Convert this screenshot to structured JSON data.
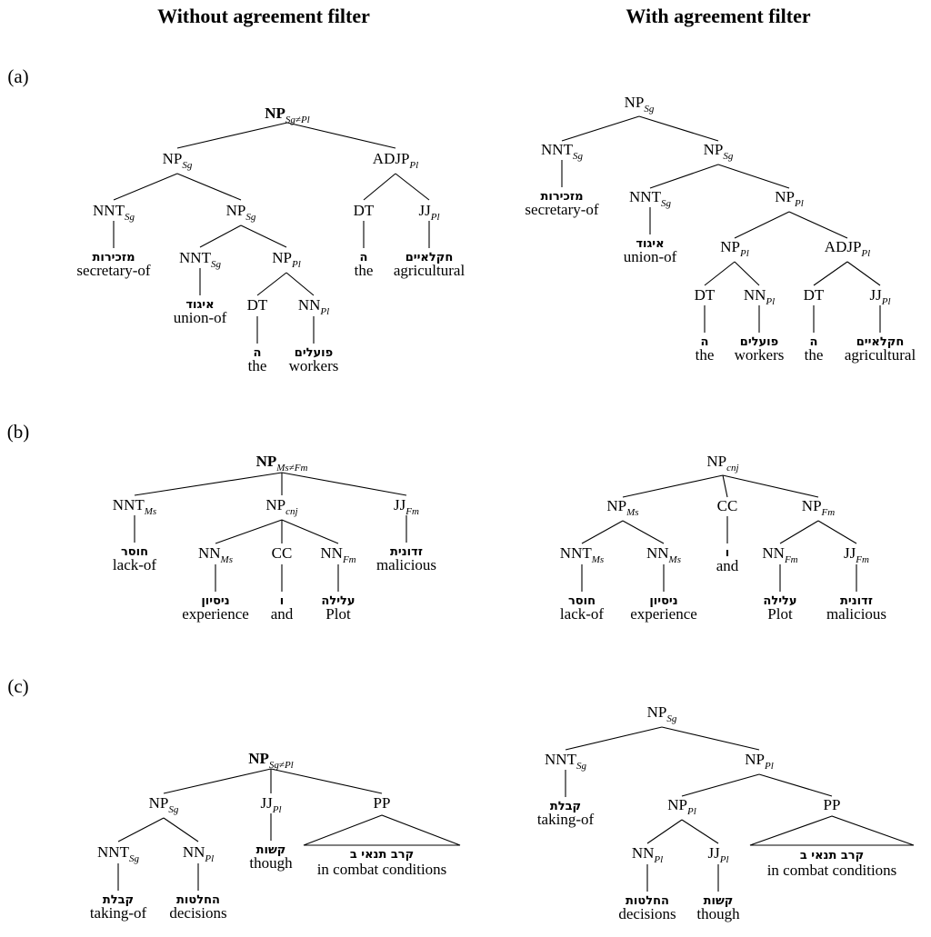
{
  "headers": {
    "left": "Without agreement filter",
    "right": "With agreement filter"
  },
  "panels": {
    "a": "(a)",
    "b": "(b)",
    "c": "(c)"
  },
  "glosses": {
    "secretary_of": {
      "heb": "מזכירות",
      "en": "secretary-of"
    },
    "union_of": {
      "heb": "איגוד",
      "en": "union-of"
    },
    "the": {
      "heb": "ה",
      "en": "the"
    },
    "workers": {
      "heb": "פועלים",
      "en": "workers"
    },
    "agricultural": {
      "heb": "חקלאיים",
      "en": "agricultural"
    },
    "lack_of": {
      "heb": "חוסר",
      "en": "lack-of"
    },
    "experience": {
      "heb": "ניסיון",
      "en": "experience"
    },
    "and": {
      "heb": "ו",
      "en": "and"
    },
    "plot": {
      "heb": "עלילה",
      "en": "Plot"
    },
    "malicious": {
      "heb": "זדונית",
      "en": "malicious"
    },
    "taking_of": {
      "heb": "קבלת",
      "en": "taking-of"
    },
    "decisions": {
      "heb": "החלטות",
      "en": "decisions"
    },
    "though": {
      "heb": "קשות",
      "en": "though"
    },
    "combat": {
      "heb": "קרב תנאי ב",
      "en": "in combat conditions"
    }
  },
  "categories": {
    "NP": "NP",
    "NNT": "NNT",
    "ADJP": "ADJP",
    "DT": "DT",
    "JJ": "JJ",
    "NN": "NN",
    "CC": "CC",
    "PP": "PP"
  },
  "features": {
    "Sg": "Sg",
    "Pl": "Pl",
    "Ms": "Ms",
    "Fm": "Fm",
    "cnj": "cnj",
    "SgPl": "Sg≠Pl",
    "MsFm": "Ms≠Fm"
  }
}
